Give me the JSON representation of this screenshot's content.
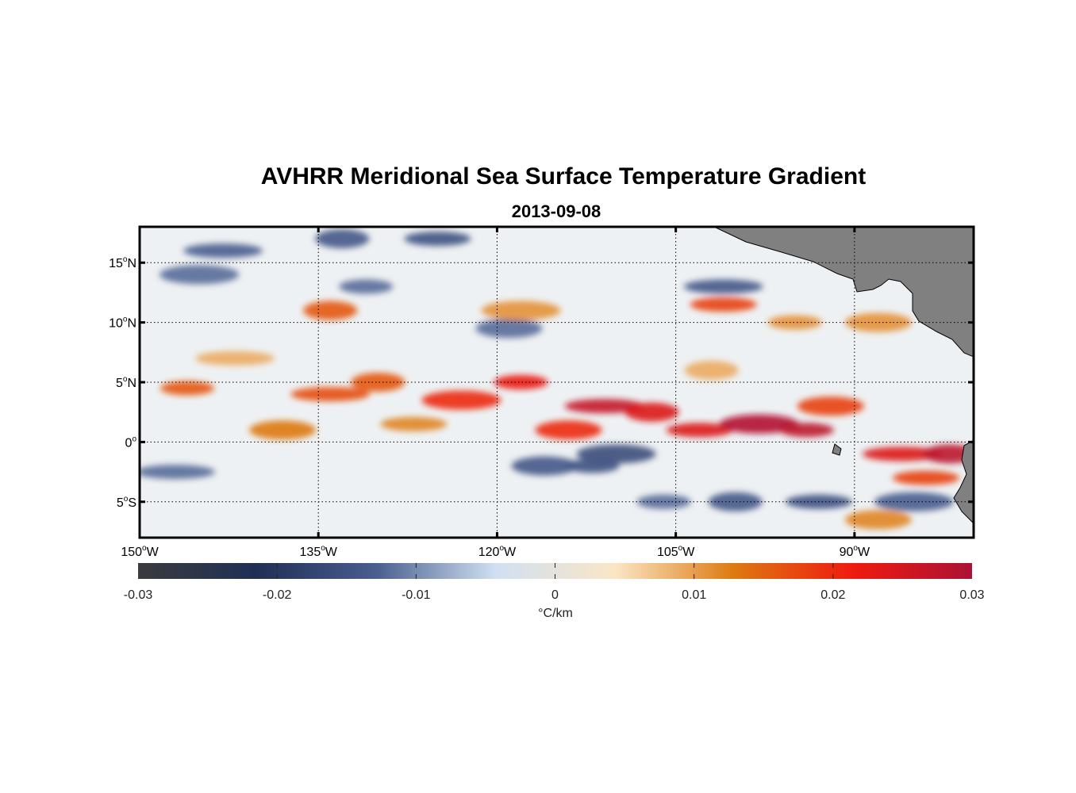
{
  "title": "AVHRR Meridional Sea Surface Temperature Gradient",
  "subtitle": "2013-09-08",
  "map": {
    "lon_range": [
      -150,
      -80
    ],
    "lat_range": [
      -8,
      18
    ],
    "lat_ticks": [
      {
        "value": 15,
        "num": "15",
        "hemi": "N"
      },
      {
        "value": 10,
        "num": "10",
        "hemi": "N"
      },
      {
        "value": 5,
        "num": "5",
        "hemi": "N"
      },
      {
        "value": 0,
        "num": "0",
        "hemi": ""
      },
      {
        "value": -5,
        "num": "5",
        "hemi": "S"
      }
    ],
    "lon_ticks": [
      {
        "value": -150,
        "num": "150",
        "hemi": "W"
      },
      {
        "value": -135,
        "num": "135",
        "hemi": "W"
      },
      {
        "value": -120,
        "num": "120",
        "hemi": "W"
      },
      {
        "value": -105,
        "num": "105",
        "hemi": "W"
      },
      {
        "value": -90,
        "num": "90",
        "hemi": "W"
      }
    ],
    "degree_symbol": "o",
    "land_color": "#808080",
    "features": [
      {
        "lon": -146,
        "lat": 4.5,
        "v": 0.016
      },
      {
        "lon": -138,
        "lat": 1.0,
        "v": 0.013
      },
      {
        "lon": -134,
        "lat": 4.0,
        "v": 0.017
      },
      {
        "lon": -130,
        "lat": 5.0,
        "v": 0.016
      },
      {
        "lon": -127,
        "lat": 1.5,
        "v": 0.012
      },
      {
        "lon": -123,
        "lat": 3.5,
        "v": 0.02
      },
      {
        "lon": -118,
        "lat": 5.0,
        "v": 0.022
      },
      {
        "lon": -114,
        "lat": 1.0,
        "v": 0.02
      },
      {
        "lon": -111,
        "lat": 3.0,
        "v": 0.027
      },
      {
        "lon": -107,
        "lat": 2.5,
        "v": 0.024
      },
      {
        "lon": -103,
        "lat": 1.0,
        "v": 0.024
      },
      {
        "lon": -98,
        "lat": 1.5,
        "v": 0.029
      },
      {
        "lon": -94,
        "lat": 1.0,
        "v": 0.028
      },
      {
        "lon": -92,
        "lat": 3.0,
        "v": 0.018
      },
      {
        "lon": -86,
        "lat": -1.0,
        "v": 0.024
      },
      {
        "lon": -82,
        "lat": -1.0,
        "v": 0.028
      },
      {
        "lon": -84,
        "lat": -3.0,
        "v": 0.018
      },
      {
        "lon": -110,
        "lat": -1.0,
        "v": -0.016
      },
      {
        "lon": -112,
        "lat": -2.0,
        "v": -0.015
      },
      {
        "lon": -116,
        "lat": -2.0,
        "v": -0.014
      },
      {
        "lon": -143,
        "lat": 16.0,
        "v": -0.013
      },
      {
        "lon": -133,
        "lat": 17.0,
        "v": -0.014
      },
      {
        "lon": -125,
        "lat": 17.0,
        "v": -0.015
      },
      {
        "lon": -145,
        "lat": 14.0,
        "v": -0.012
      },
      {
        "lon": -131,
        "lat": 13.0,
        "v": -0.012
      },
      {
        "lon": -119,
        "lat": 9.5,
        "v": -0.012
      },
      {
        "lon": -101,
        "lat": 13.0,
        "v": -0.014
      },
      {
        "lon": -134,
        "lat": 11.0,
        "v": 0.016
      },
      {
        "lon": -101,
        "lat": 11.5,
        "v": 0.018
      },
      {
        "lon": -118,
        "lat": 11.0,
        "v": 0.011
      },
      {
        "lon": -95,
        "lat": 10.0,
        "v": 0.011
      },
      {
        "lon": -88,
        "lat": 10.0,
        "v": 0.011
      },
      {
        "lon": -147,
        "lat": -2.5,
        "v": -0.012
      },
      {
        "lon": -100,
        "lat": -5.0,
        "v": -0.014
      },
      {
        "lon": -93,
        "lat": -5.0,
        "v": -0.015
      },
      {
        "lon": -85,
        "lat": -5.0,
        "v": -0.013
      },
      {
        "lon": -106,
        "lat": -5.0,
        "v": -0.012
      },
      {
        "lon": -88,
        "lat": -6.5,
        "v": 0.012
      },
      {
        "lon": -142,
        "lat": 7.0,
        "v": 0.009
      },
      {
        "lon": -102,
        "lat": 6.0,
        "v": 0.009
      }
    ]
  },
  "colorbar": {
    "min": -0.03,
    "max": 0.03,
    "ticks": [
      "-0.03",
      "-0.02",
      "-0.01",
      "0",
      "0.01",
      "0.02",
      "0.03"
    ],
    "unit_label": "°C/km",
    "colors": [
      "#3a3b3e",
      "#1f2f56",
      "#4a5e8f",
      "#cfe0f2",
      "#fbe6c6",
      "#dd7a10",
      "#ef1a10",
      "#ab1235"
    ]
  }
}
